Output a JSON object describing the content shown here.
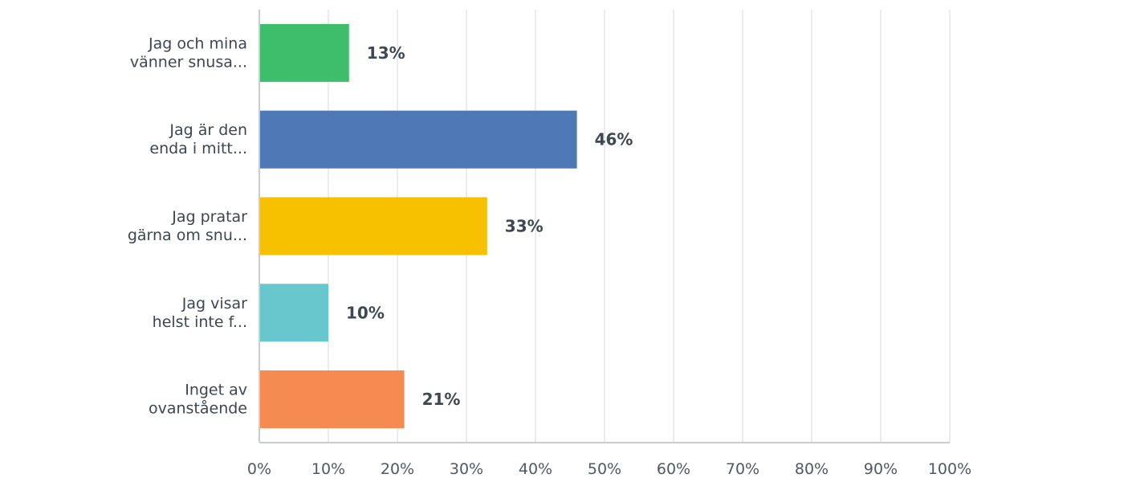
{
  "chart_data": {
    "type": "bar",
    "orientation": "horizontal",
    "categories": [
      [
        "Jag och mina",
        "vänner snusa..."
      ],
      [
        "Jag är den",
        "enda i mitt..."
      ],
      [
        "Jag pratar",
        "gärna om snu..."
      ],
      [
        "Jag visar",
        "helst inte f..."
      ],
      [
        "Inget av",
        "ovanstående"
      ]
    ],
    "values": [
      13,
      46,
      33,
      10,
      21
    ],
    "value_labels": [
      "13%",
      "46%",
      "33%",
      "10%",
      "21%"
    ],
    "colors": [
      "#3ebd6a",
      "#4e79b6",
      "#f7c100",
      "#68c7cc",
      "#f58b51"
    ],
    "xlim": [
      0,
      100
    ],
    "x_ticks": [
      0,
      10,
      20,
      30,
      40,
      50,
      60,
      70,
      80,
      90,
      100
    ],
    "x_tick_labels": [
      "0%",
      "10%",
      "20%",
      "30%",
      "40%",
      "50%",
      "60%",
      "70%",
      "80%",
      "90%",
      "100%"
    ],
    "grid": true,
    "title": "",
    "xlabel": "",
    "ylabel": ""
  }
}
